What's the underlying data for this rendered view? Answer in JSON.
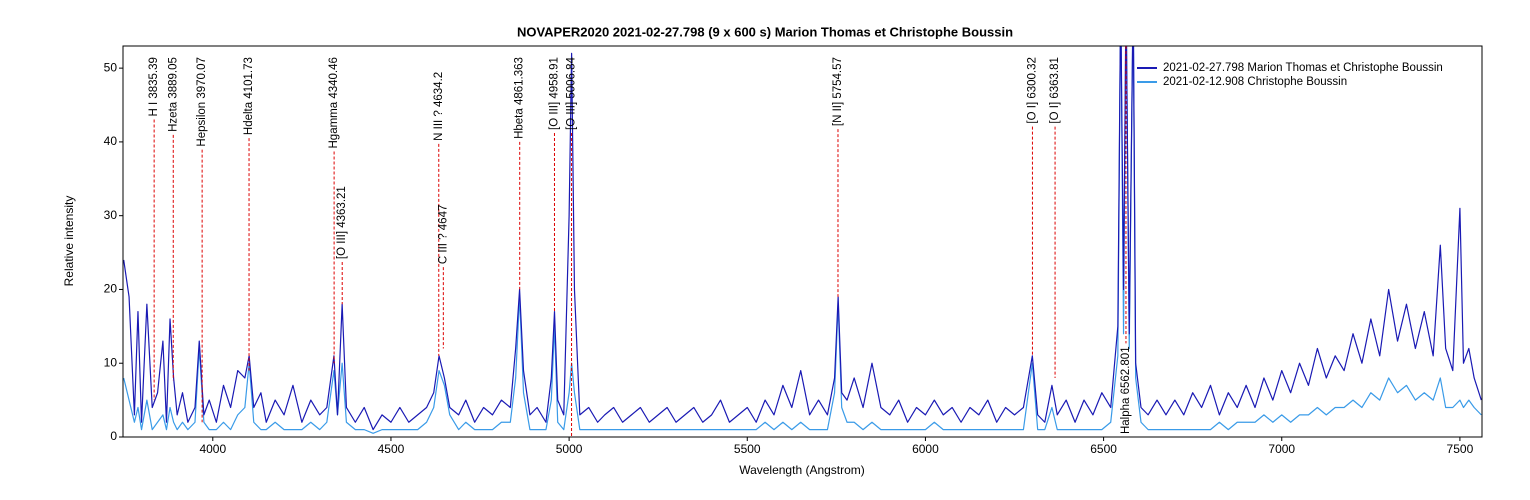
{
  "chart_data": {
    "type": "line",
    "title": "NOVAPER2020   2021-02-27.798   (9 x 600 s)   Marion Thomas et Christophe Boussin",
    "x_label": "Wavelength (Angstrom)",
    "y_label": "Relative intensity",
    "xlim": [
      3748,
      7562
    ],
    "ylim": [
      0,
      53
    ],
    "xticks": [
      4000,
      4500,
      5000,
      5500,
      6000,
      6500,
      7000,
      7500
    ],
    "yticks": [
      0,
      10,
      20,
      30,
      40,
      50
    ],
    "legend": "upper right",
    "x": [
      3750,
      3765,
      3780,
      3790,
      3800,
      3815,
      3830,
      3845,
      3860,
      3870,
      3880,
      3890,
      3900,
      3915,
      3930,
      3950,
      3962,
      3975,
      3990,
      4010,
      4030,
      4050,
      4070,
      4090,
      4102,
      4115,
      4135,
      4150,
      4175,
      4200,
      4225,
      4250,
      4275,
      4300,
      4320,
      4340,
      4350,
      4363,
      4375,
      4400,
      4425,
      4450,
      4475,
      4500,
      4525,
      4550,
      4575,
      4600,
      4620,
      4635,
      4650,
      4665,
      4690,
      4710,
      4735,
      4760,
      4785,
      4810,
      4835,
      4850,
      4861,
      4872,
      4890,
      4910,
      4935,
      4950,
      4959,
      4968,
      4985,
      5000,
      5007,
      5015,
      5030,
      5055,
      5080,
      5100,
      5125,
      5150,
      5175,
      5200,
      5225,
      5250,
      5275,
      5300,
      5325,
      5350,
      5375,
      5400,
      5425,
      5450,
      5475,
      5500,
      5525,
      5550,
      5575,
      5600,
      5625,
      5650,
      5675,
      5700,
      5725,
      5745,
      5755,
      5765,
      5780,
      5800,
      5825,
      5850,
      5875,
      5900,
      5925,
      5950,
      5975,
      6000,
      6025,
      6050,
      6075,
      6100,
      6125,
      6150,
      6175,
      6200,
      6225,
      6250,
      6275,
      6300,
      6315,
      6335,
      6355,
      6370,
      6395,
      6420,
      6445,
      6470,
      6495,
      6520,
      6540,
      6548,
      6556,
      6563,
      6572,
      6583,
      6590,
      6605,
      6625,
      6650,
      6675,
      6700,
      6725,
      6750,
      6775,
      6800,
      6825,
      6850,
      6875,
      6900,
      6925,
      6950,
      6975,
      7000,
      7025,
      7050,
      7075,
      7100,
      7125,
      7150,
      7175,
      7200,
      7225,
      7250,
      7275,
      7300,
      7325,
      7350,
      7375,
      7400,
      7425,
      7445,
      7460,
      7480,
      7500,
      7510,
      7525,
      7540,
      7560
    ],
    "series": [
      {
        "name": "2021-02-27.798  Marion Thomas et Christophe Boussin",
        "color": "#1a1ab4",
        "values": [
          24,
          19,
          3,
          17,
          2,
          18,
          4,
          6,
          13,
          2,
          16,
          8,
          3,
          6,
          2,
          4,
          13,
          3,
          5,
          2,
          7,
          4,
          9,
          8,
          11,
          4,
          6,
          2,
          5,
          3,
          7,
          2,
          5,
          3,
          4,
          11,
          3,
          18,
          4,
          2,
          4,
          1,
          3,
          2,
          4,
          2,
          3,
          4,
          6,
          11,
          8,
          4,
          3,
          5,
          2,
          4,
          3,
          5,
          4,
          12,
          20,
          9,
          3,
          4,
          2,
          8,
          17,
          5,
          3,
          30,
          52,
          20,
          3,
          4,
          2,
          3,
          4,
          2,
          3,
          4,
          2,
          3,
          4,
          2,
          3,
          4,
          2,
          3,
          5,
          2,
          3,
          4,
          2,
          5,
          3,
          7,
          4,
          9,
          3,
          5,
          3,
          8,
          19,
          6,
          5,
          8,
          4,
          10,
          4,
          3,
          5,
          2,
          4,
          3,
          5,
          3,
          4,
          2,
          4,
          3,
          5,
          2,
          4,
          3,
          4,
          11,
          3,
          2,
          7,
          3,
          5,
          2,
          5,
          3,
          6,
          4,
          15,
          60,
          20,
          60,
          14,
          60,
          10,
          4,
          3,
          5,
          3,
          5,
          3,
          6,
          4,
          7,
          3,
          6,
          4,
          7,
          4,
          8,
          5,
          9,
          6,
          10,
          7,
          12,
          8,
          11,
          9,
          14,
          10,
          16,
          11,
          20,
          13,
          18,
          12,
          17,
          11,
          26,
          12,
          9,
          31,
          10,
          12,
          8,
          5
        ]
      },
      {
        "name": "2021-02-12.908  Christophe Boussin",
        "color": "#3a9be8",
        "values": [
          8,
          5,
          2,
          4,
          1,
          5,
          1,
          2,
          3,
          1,
          4,
          2,
          1,
          2,
          1,
          2,
          12,
          2,
          1,
          1,
          2,
          1,
          3,
          4,
          10,
          2,
          1,
          1,
          2,
          1,
          1,
          1,
          2,
          1,
          2,
          9,
          3,
          10,
          2,
          1,
          1,
          0.5,
          1,
          1,
          1,
          1,
          1,
          2,
          4,
          9,
          7,
          3,
          1,
          2,
          1,
          1,
          1,
          2,
          2,
          8,
          19,
          6,
          1,
          1,
          1,
          5,
          15,
          2,
          1,
          6,
          10,
          6,
          1,
          1,
          1,
          1,
          1,
          1,
          1,
          1,
          1,
          1,
          1,
          1,
          1,
          1,
          1,
          1,
          1,
          1,
          1,
          1,
          1,
          2,
          1,
          2,
          1,
          2,
          1,
          1,
          1,
          6,
          18,
          4,
          2,
          2,
          1,
          2,
          1,
          1,
          1,
          1,
          1,
          1,
          2,
          1,
          1,
          1,
          1,
          1,
          1,
          1,
          1,
          1,
          1,
          10,
          1,
          1,
          4,
          1,
          1,
          1,
          1,
          1,
          1,
          2,
          11,
          60,
          14,
          60,
          12,
          60,
          8,
          2,
          1,
          1,
          1,
          1,
          1,
          1,
          1,
          1,
          2,
          1,
          2,
          2,
          2,
          3,
          2,
          3,
          2,
          3,
          3,
          4,
          3,
          4,
          4,
          5,
          4,
          6,
          5,
          8,
          6,
          7,
          5,
          6,
          5,
          8,
          4,
          4,
          5,
          4,
          5,
          4,
          3
        ]
      }
    ],
    "annotation_color": "#dd0000",
    "annotations": [
      {
        "label": "H I 3835.39",
        "x": 3835.39,
        "y_top": 51.5,
        "y_bottom": 5
      },
      {
        "label": "Hzeta 3889.05",
        "x": 3889.05,
        "y_top": 51.5,
        "y_bottom": 7.7
      },
      {
        "label": "Hepsilon 3970.07",
        "x": 3970.07,
        "y_top": 51.5,
        "y_bottom": 2
      },
      {
        "label": "Hdelta 4101.73",
        "x": 4101.73,
        "y_top": 51.5,
        "y_bottom": 9
      },
      {
        "label": "Hgamma 4340.46",
        "x": 4340.46,
        "y_top": 51.5,
        "y_bottom": 10
      },
      {
        "label": "[O III] 4363.21",
        "x": 4363.21,
        "y_top": 34,
        "y_bottom": 18
      },
      {
        "label": "N III ? 4634.2",
        "x": 4634.2,
        "y_top": 49.5,
        "y_bottom": 11
      },
      {
        "label": "C III ? 4647",
        "x": 4647,
        "y_top": 31.5,
        "y_bottom": 12
      },
      {
        "label": "Hbeta 4861.363",
        "x": 4861.363,
        "y_top": 51.5,
        "y_bottom": 20
      },
      {
        "label": "[O III] 4958.91",
        "x": 4958.91,
        "y_top": 51.5,
        "y_bottom": 17
      },
      {
        "label": "[O III] 5006.84",
        "x": 5006.84,
        "y_top": 51.5,
        "y_bottom": 0
      },
      {
        "label": "[N II] 5754.57",
        "x": 5754.57,
        "y_top": 51.5,
        "y_bottom": 19
      },
      {
        "label": "[O I] 6300.32",
        "x": 6300.32,
        "y_top": 51.5,
        "y_bottom": 11
      },
      {
        "label": "[O I] 6363.81",
        "x": 6363.81,
        "y_top": 51.5,
        "y_bottom": 8
      },
      {
        "label": "Halpha 6562.801",
        "x": 6562.801,
        "y_top": 53,
        "y_bottom": 0,
        "label_at": "bottom"
      }
    ]
  }
}
